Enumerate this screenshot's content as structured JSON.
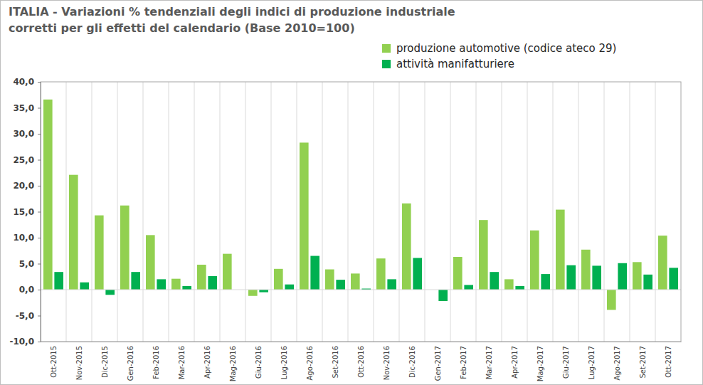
{
  "chart_data": {
    "type": "bar",
    "title": "ITALIA - Variazioni % tendenziali degli indici di produzione industriale",
    "subtitle": "corretti per gli effetti del calendario (Base 2010=100)",
    "categories": [
      "Ott-2015",
      "Nov-2015",
      "Dic-2015",
      "Gen-2016",
      "Feb-2016",
      "Mar-2016",
      "Apr-2016",
      "Mag-2016",
      "Giu-2016",
      "Lug-2016",
      "Ago-2016",
      "Set-2016",
      "Ott-2016",
      "Nov-2016",
      "Dic-2016",
      "Gen-2017",
      "Feb-2017",
      "Mar-2017",
      "Apr-2017",
      "Mag-2017",
      "Giu-2017",
      "Lug-2017",
      "Ago-2017",
      "Set-2017",
      "Ott-2017"
    ],
    "series": [
      {
        "name": "produzione automotive (codice ateco 29)",
        "color": "#92d050",
        "values": [
          36.6,
          22.1,
          14.3,
          16.2,
          10.5,
          2.1,
          4.8,
          6.9,
          -1.2,
          4.0,
          28.3,
          3.9,
          3.1,
          6.0,
          16.6,
          0.0,
          6.3,
          13.4,
          2.0,
          11.4,
          15.4,
          7.7,
          -3.9,
          5.3,
          10.4
        ]
      },
      {
        "name": "attività manifatturiere",
        "color": "#00b050",
        "values": [
          3.4,
          1.4,
          -1.0,
          3.4,
          2.0,
          0.7,
          2.6,
          0.0,
          -0.5,
          1.0,
          6.5,
          1.9,
          0.2,
          2.0,
          6.1,
          -2.2,
          0.9,
          3.4,
          0.7,
          3.0,
          4.7,
          4.6,
          5.1,
          2.9,
          4.2
        ]
      }
    ],
    "ylim": [
      -10,
      40
    ],
    "yticks": [
      {
        "value": -10,
        "label": "-10,0"
      },
      {
        "value": -5,
        "label": "-5,0"
      },
      {
        "value": 0,
        "label": "0,0"
      },
      {
        "value": 5,
        "label": "5,0"
      },
      {
        "value": 10,
        "label": "10,0"
      },
      {
        "value": 15,
        "label": "15,0"
      },
      {
        "value": 20,
        "label": "20,0"
      },
      {
        "value": 25,
        "label": "25,0"
      },
      {
        "value": 30,
        "label": "30,0"
      },
      {
        "value": 35,
        "label": "35,0"
      },
      {
        "value": 40,
        "label": "40,0"
      }
    ],
    "legend": "top-right"
  }
}
